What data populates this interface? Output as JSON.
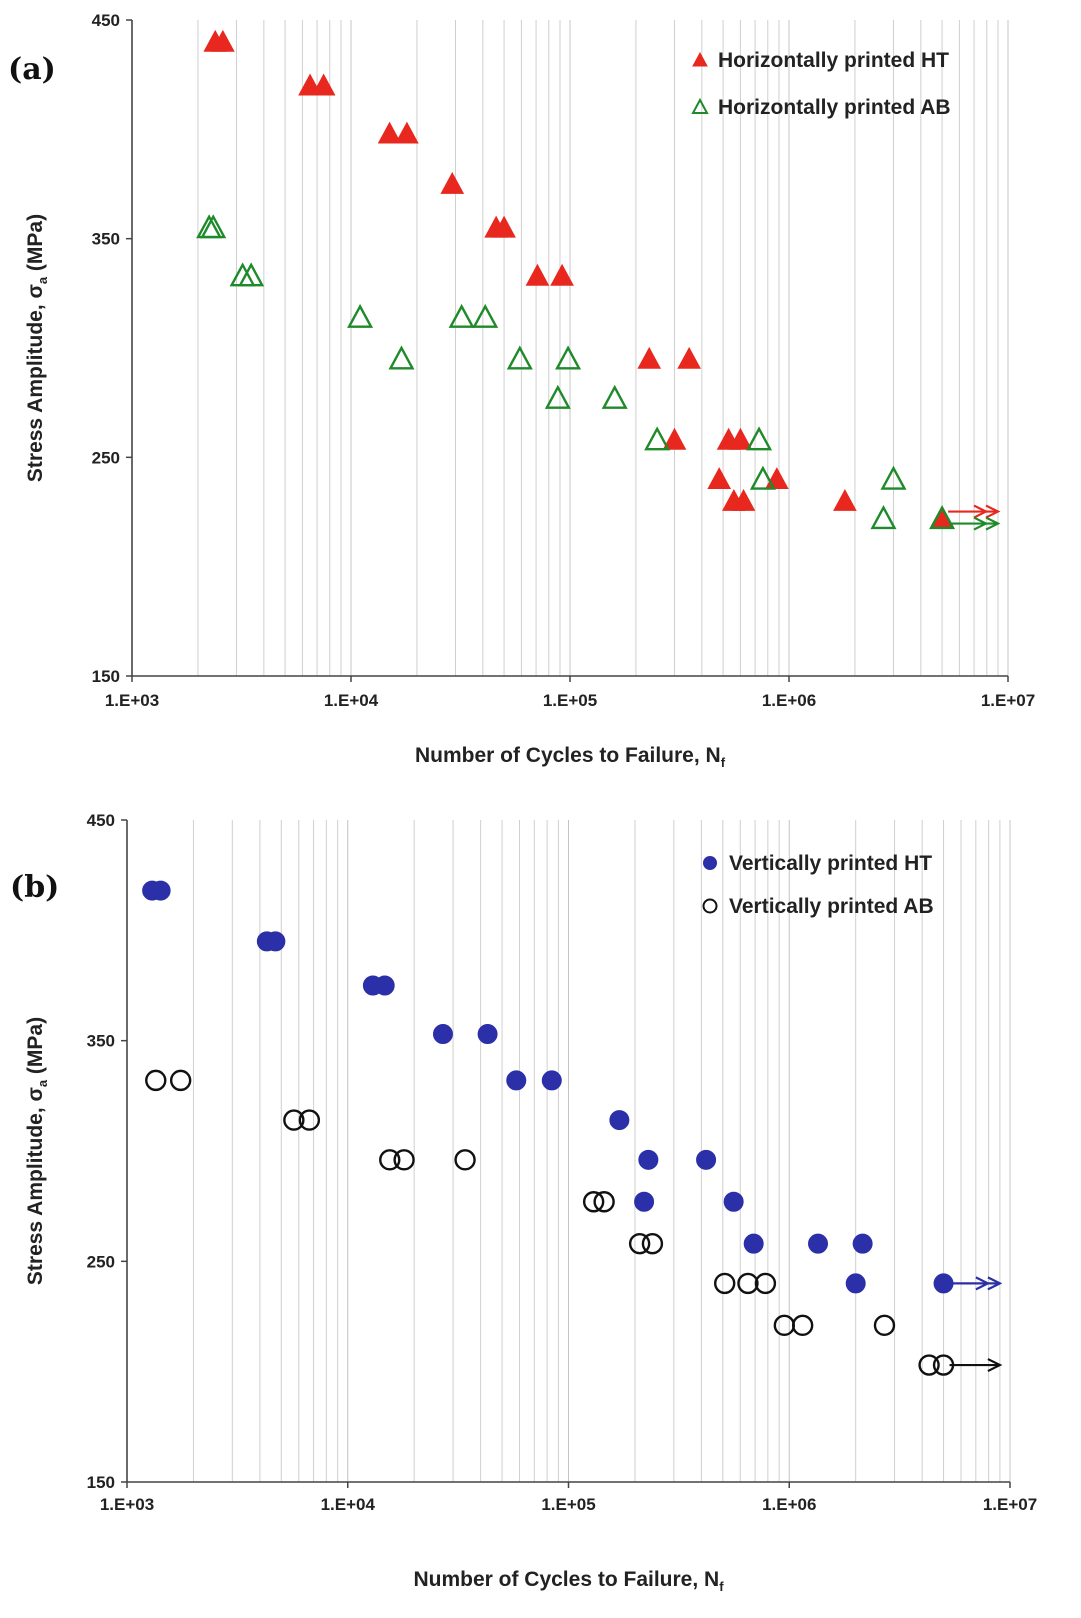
{
  "chart_data": [
    {
      "type": "scatter",
      "panel_label": "(a)",
      "xlabel": "Number of Cycles to Failure, N",
      "xlabel_sub": "f",
      "ylabel": "Stress Amplitude, σ",
      "ylabel_sub": "a",
      "ylabel_unit": " (MPa)",
      "x_scale": "log",
      "xlim": [
        1000,
        10000000
      ],
      "ylim": [
        150,
        450
      ],
      "x_ticks": [
        "1.E+03",
        "1.E+04",
        "1.E+05",
        "1.E+06",
        "1.E+07"
      ],
      "y_ticks": [
        "150",
        "250",
        "350",
        "450"
      ],
      "grid": "vertical minor log gridlines",
      "legend_position": "top-right",
      "series": [
        {
          "name": "Horizontally printed HT",
          "marker": "filled-triangle",
          "color": "#e8281e",
          "runout_arrow_at": [
            5000000,
            222
          ],
          "points": [
            [
              2400,
              440
            ],
            [
              2600,
              440
            ],
            [
              6500,
              420
            ],
            [
              7500,
              420
            ],
            [
              15000,
              398
            ],
            [
              18000,
              398
            ],
            [
              29000,
              375
            ],
            [
              46000,
              355
            ],
            [
              50000,
              355
            ],
            [
              71000,
              333
            ],
            [
              92000,
              333
            ],
            [
              230000,
              295
            ],
            [
              350000,
              295
            ],
            [
              300000,
              258
            ],
            [
              480000,
              240
            ],
            [
              530000,
              258
            ],
            [
              560000,
              230
            ],
            [
              620000,
              230
            ],
            [
              600000,
              258
            ],
            [
              880000,
              240
            ],
            [
              1800000,
              230
            ],
            [
              5000000,
              222
            ]
          ]
        },
        {
          "name": "Horizontally printed AB",
          "marker": "open-triangle",
          "color": "#1e8a2a",
          "runout_arrow_at": [
            5000000,
            222
          ],
          "points": [
            [
              2250,
              355
            ],
            [
              2350,
              355
            ],
            [
              3200,
              333
            ],
            [
              3500,
              333
            ],
            [
              11000,
              314
            ],
            [
              17000,
              295
            ],
            [
              32000,
              314
            ],
            [
              41000,
              314
            ],
            [
              59000,
              295
            ],
            [
              98000,
              295
            ],
            [
              88000,
              277
            ],
            [
              160000,
              277
            ],
            [
              250000,
              258
            ],
            [
              730000,
              258
            ],
            [
              760000,
              240
            ],
            [
              2700000,
              222
            ],
            [
              3000000,
              240
            ],
            [
              5000000,
              222
            ]
          ]
        }
      ]
    },
    {
      "type": "scatter",
      "panel_label": "(b)",
      "xlabel": "Number of Cycles to Failure, N",
      "xlabel_sub": "f",
      "ylabel": "Stress Amplitude, σ",
      "ylabel_sub": "a",
      "ylabel_unit": " (MPa)",
      "x_scale": "log",
      "xlim": [
        1000,
        10000000
      ],
      "ylim": [
        150,
        450
      ],
      "x_ticks": [
        "1.E+03",
        "1.E+04",
        "1.E+05",
        "1.E+06",
        "1.E+07"
      ],
      "y_ticks": [
        "150",
        "250",
        "350",
        "450"
      ],
      "grid": "vertical minor log gridlines",
      "legend_position": "top-right",
      "series": [
        {
          "name": "Vertically printed HT",
          "marker": "filled-circle",
          "color": "#2b2fa8",
          "runout_arrow_at": [
            5000000,
            240
          ],
          "points": [
            [
              1300,
              418
            ],
            [
              1420,
              418
            ],
            [
              4300,
              395
            ],
            [
              4700,
              395
            ],
            [
              13000,
              375
            ],
            [
              14700,
              375
            ],
            [
              27000,
              353
            ],
            [
              43000,
              353
            ],
            [
              58000,
              332
            ],
            [
              84000,
              332
            ],
            [
              170000,
              314
            ],
            [
              230000,
              296
            ],
            [
              420000,
              296
            ],
            [
              220000,
              277
            ],
            [
              560000,
              277
            ],
            [
              690000,
              258
            ],
            [
              1350000,
              258
            ],
            [
              2150000,
              258
            ],
            [
              2000000,
              240
            ],
            [
              5000000,
              240
            ]
          ]
        },
        {
          "name": "Vertically printed AB",
          "marker": "open-circle",
          "color": "#111111",
          "runout_arrow_at": [
            5000000,
            203
          ],
          "points": [
            [
              1350,
              332
            ],
            [
              1750,
              332
            ],
            [
              5700,
              314
            ],
            [
              6700,
              314
            ],
            [
              15500,
              296
            ],
            [
              18000,
              296
            ],
            [
              34000,
              296
            ],
            [
              130000,
              277
            ],
            [
              145000,
              277
            ],
            [
              210000,
              258
            ],
            [
              240000,
              258
            ],
            [
              510000,
              240
            ],
            [
              650000,
              240
            ],
            [
              780000,
              240
            ],
            [
              950000,
              221
            ],
            [
              1150000,
              221
            ],
            [
              2700000,
              221
            ],
            [
              4300000,
              203
            ],
            [
              5000000,
              203
            ]
          ]
        }
      ]
    }
  ]
}
